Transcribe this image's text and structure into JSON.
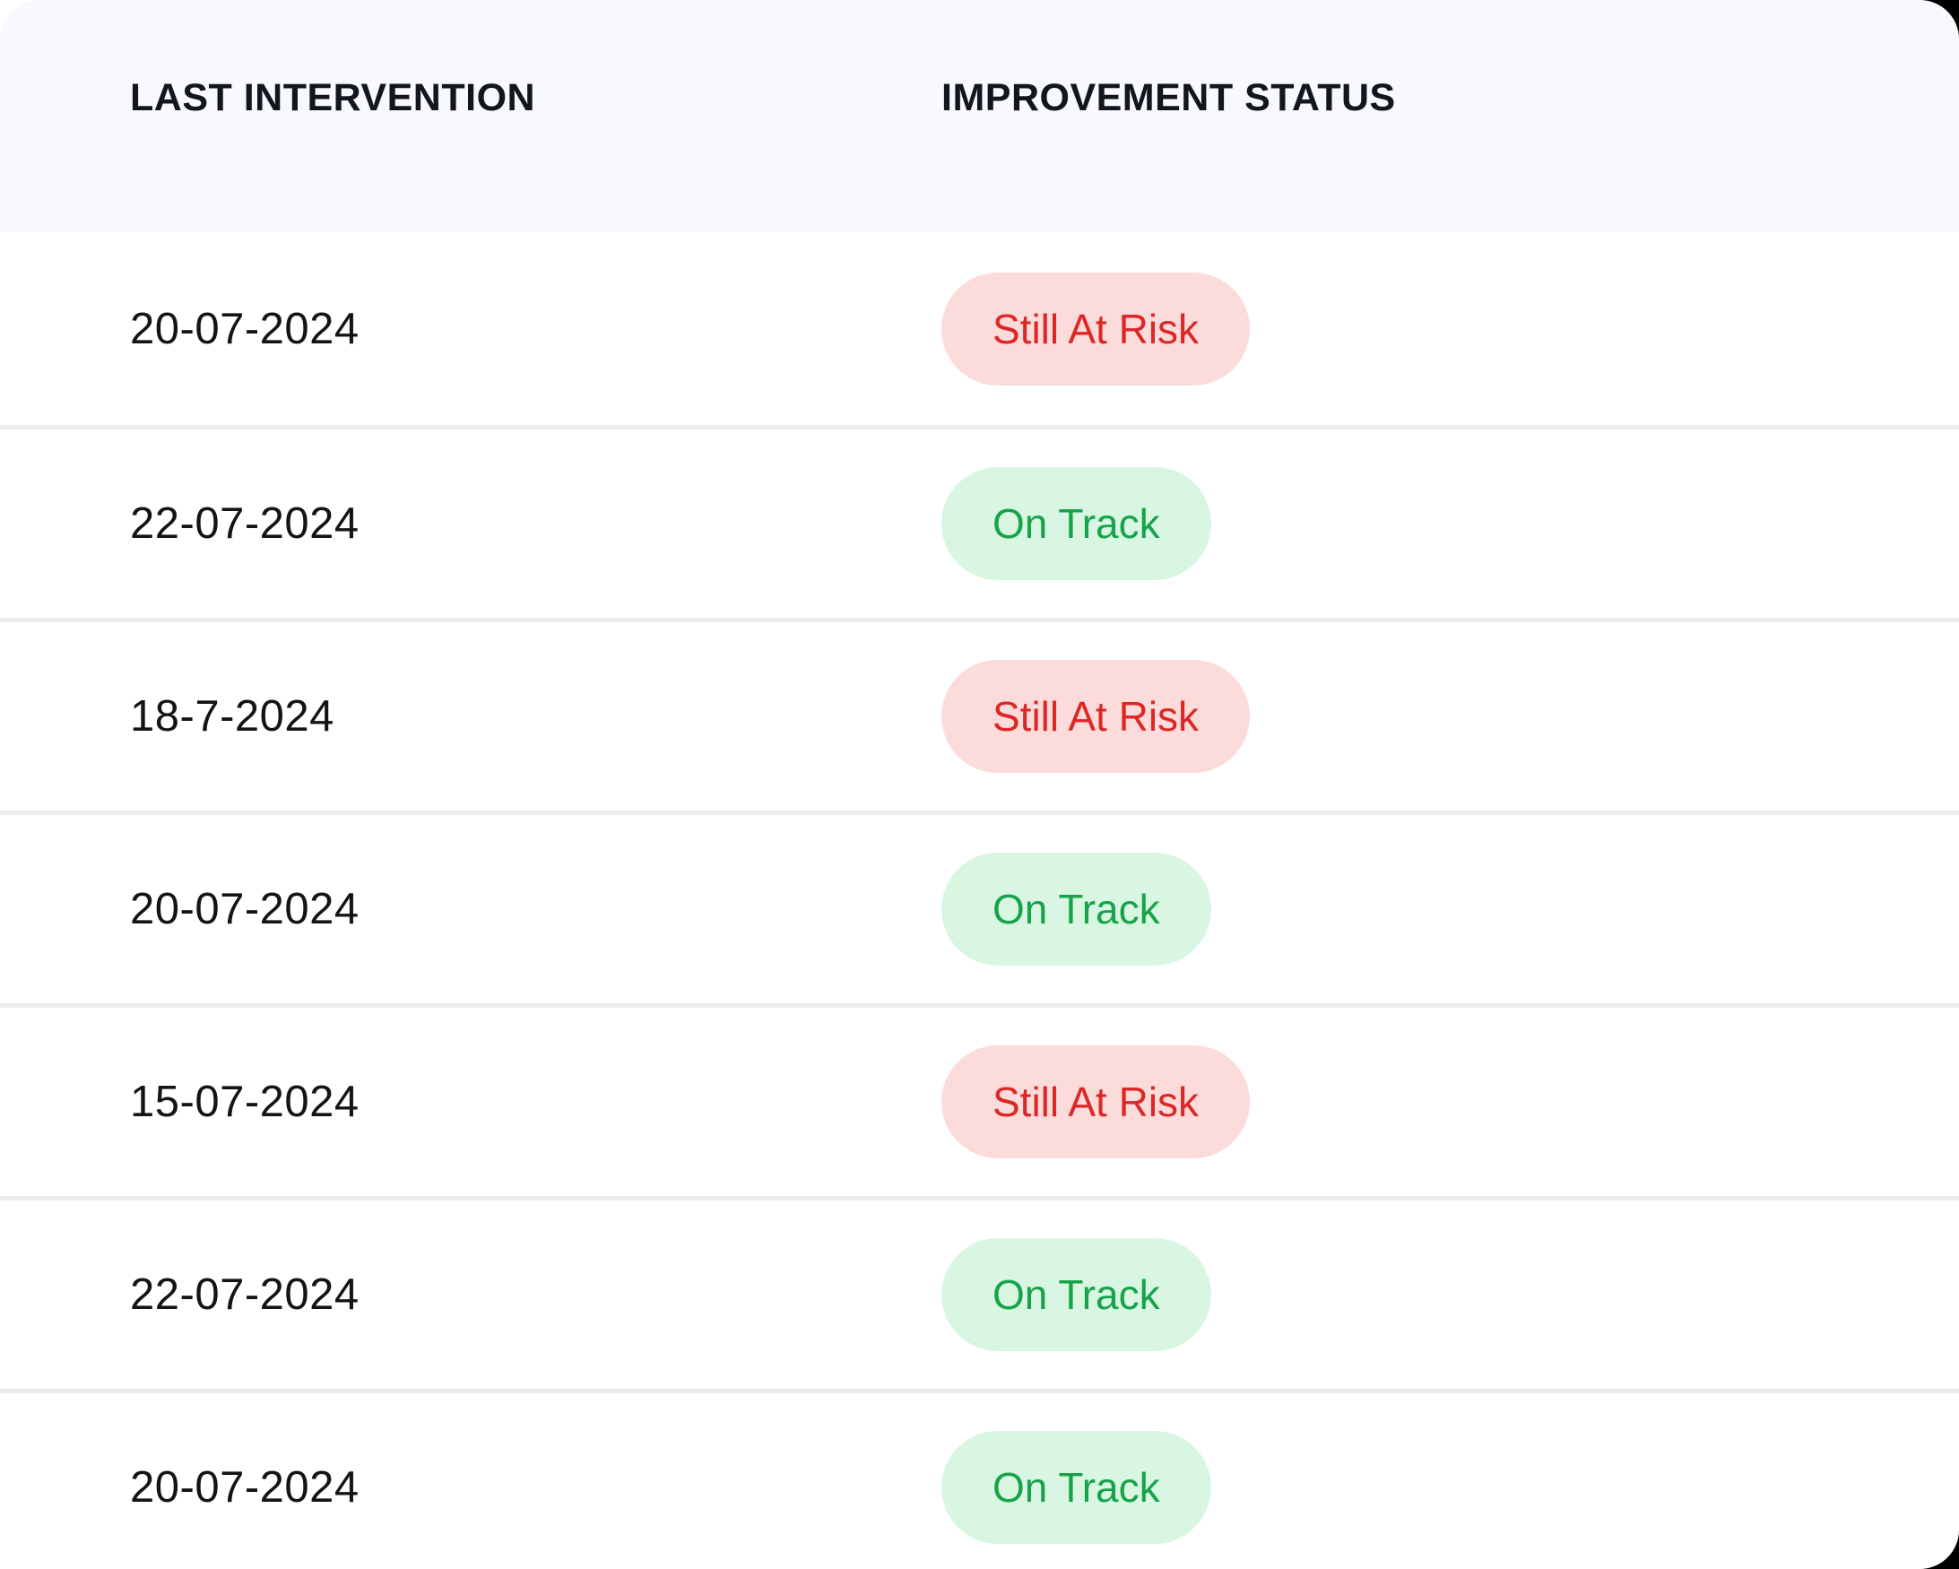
{
  "table": {
    "columns": [
      {
        "key": "last_intervention",
        "label": "LAST INTERVENTION"
      },
      {
        "key": "improvement_status",
        "label": "IMPROVEMENT STATUS"
      }
    ],
    "rows": [
      {
        "last_intervention": "20-07-2024",
        "status": "Still At Risk",
        "status_type": "risk"
      },
      {
        "last_intervention": "22-07-2024",
        "status": "On Track",
        "status_type": "ontrack"
      },
      {
        "last_intervention": "18-7-2024",
        "status": "Still At Risk",
        "status_type": "risk"
      },
      {
        "last_intervention": "20-07-2024",
        "status": "On Track",
        "status_type": "ontrack"
      },
      {
        "last_intervention": "15-07-2024",
        "status": "Still At Risk",
        "status_type": "risk"
      },
      {
        "last_intervention": "22-07-2024",
        "status": "On Track",
        "status_type": "ontrack"
      },
      {
        "last_intervention": "20-07-2024",
        "status": "On Track",
        "status_type": "ontrack"
      }
    ]
  },
  "colors": {
    "header-bg": "#f8f9fd",
    "header-text": "#14161f",
    "date-text": "#141414",
    "divider": "#ececec",
    "risk-bg": "#fcdbdb",
    "risk-text": "#dd2727",
    "ontrack-bg": "#d9f6e3",
    "ontrack-text": "#17a34a"
  }
}
